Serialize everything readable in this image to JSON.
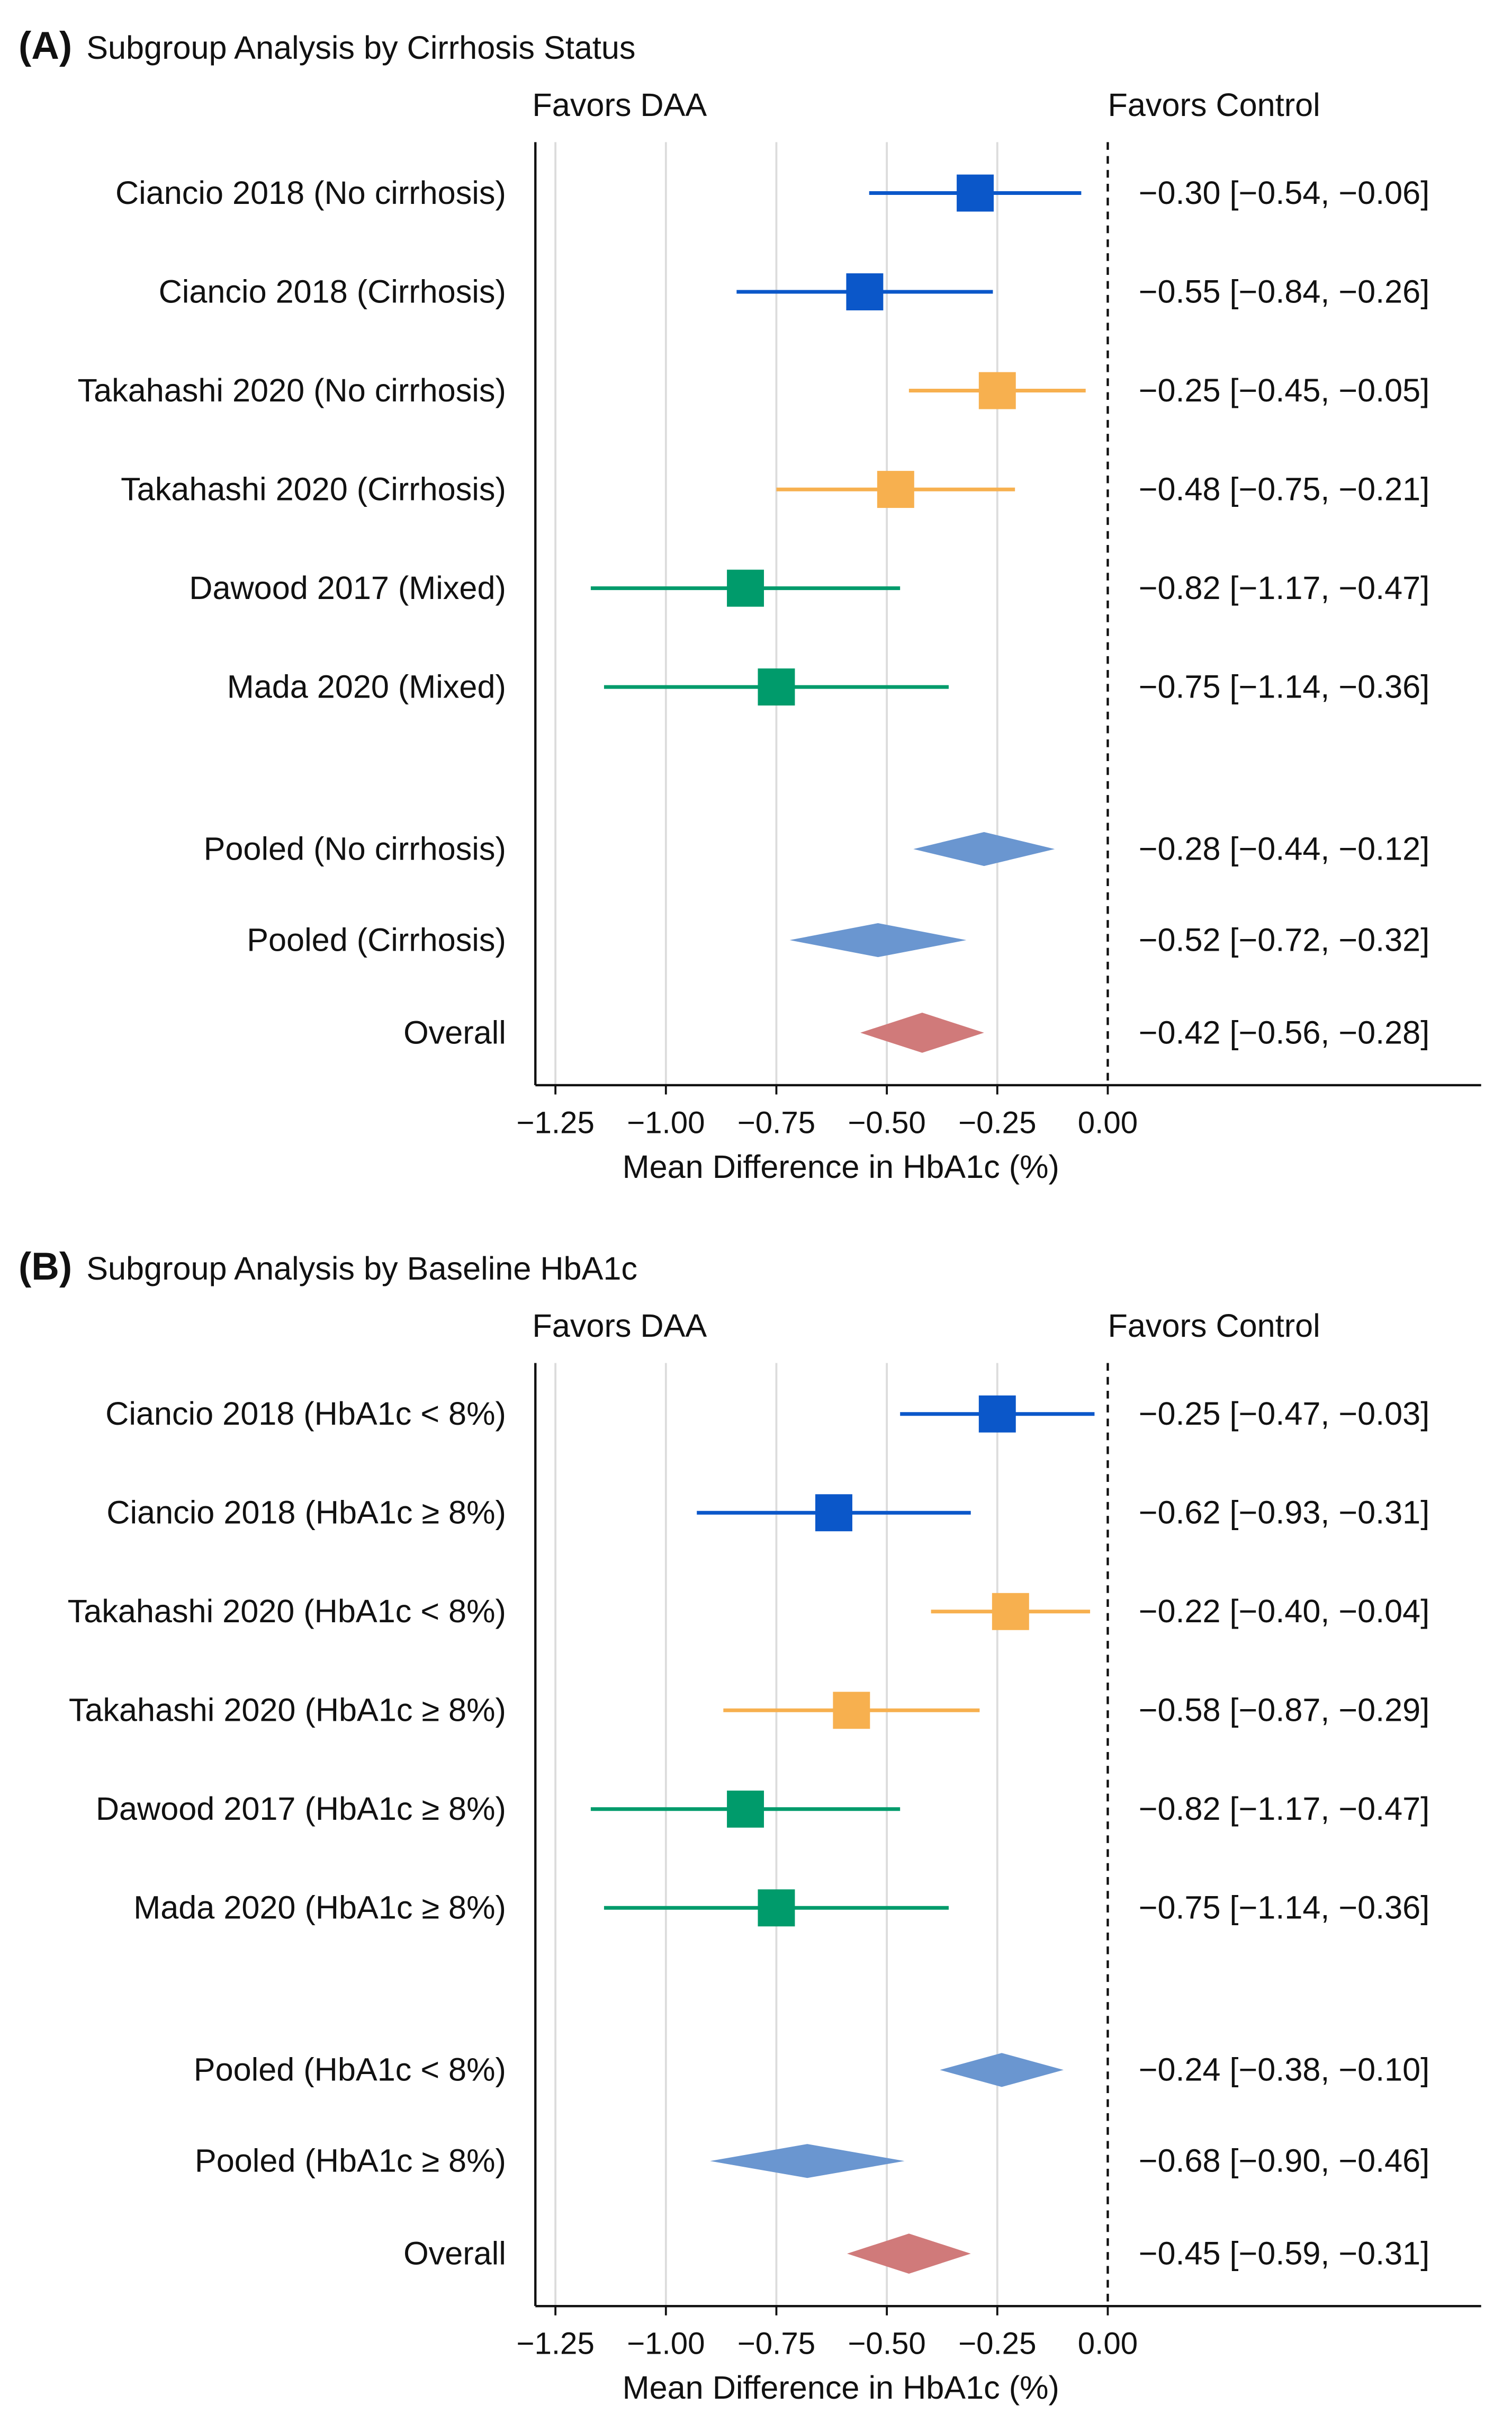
{
  "colors": {
    "ciancio": "#0B57C9",
    "takahashi": "#F7B04F",
    "dawood_mada": "#009B6B",
    "pooled": "#6A96D0",
    "overall": "#D07A7A"
  },
  "chart_data": [
    {
      "type": "forest",
      "panel_tag": "(A)",
      "title": "Subgroup Analysis by Cirrhosis Status",
      "favors_left": "Favors DAA",
      "favors_right": "Favors Control",
      "xlabel": "Mean Difference in HbA1c (%)",
      "xlim": [
        -1.3,
        0.0
      ],
      "xticks": [
        -1.25,
        -1.0,
        -0.75,
        -0.5,
        -0.25,
        0.0
      ],
      "xtick_labels": [
        "−1.25",
        "−1.00",
        "−0.75",
        "−0.50",
        "−0.25",
        "0.00"
      ],
      "reference_line": 0,
      "grid": "vertical",
      "rows": [
        {
          "label": "Ciancio 2018 (No cirrhosis)",
          "kind": "study",
          "color": "ciancio",
          "est": -0.3,
          "lo": -0.54,
          "hi": -0.06,
          "ci_text": "−0.30 [−0.54, −0.06]"
        },
        {
          "label": "Ciancio 2018 (Cirrhosis)",
          "kind": "study",
          "color": "ciancio",
          "est": -0.55,
          "lo": -0.84,
          "hi": -0.26,
          "ci_text": "−0.55 [−0.84, −0.26]"
        },
        {
          "label": "Takahashi 2020 (No cirrhosis)",
          "kind": "study",
          "color": "takahashi",
          "est": -0.25,
          "lo": -0.45,
          "hi": -0.05,
          "ci_text": "−0.25 [−0.45, −0.05]"
        },
        {
          "label": "Takahashi 2020 (Cirrhosis)",
          "kind": "study",
          "color": "takahashi",
          "est": -0.48,
          "lo": -0.75,
          "hi": -0.21,
          "ci_text": "−0.48 [−0.75, −0.21]"
        },
        {
          "label": "Dawood 2017 (Mixed)",
          "kind": "study",
          "color": "dawood_mada",
          "est": -0.82,
          "lo": -1.17,
          "hi": -0.47,
          "ci_text": "−0.82 [−1.17, −0.47]"
        },
        {
          "label": "Mada 2020 (Mixed)",
          "kind": "study",
          "color": "dawood_mada",
          "est": -0.75,
          "lo": -1.14,
          "hi": -0.36,
          "ci_text": "−0.75 [−1.14, −0.36]"
        },
        {
          "label": "Pooled (No cirrhosis)",
          "kind": "pooled",
          "color": "pooled",
          "est": -0.28,
          "lo": -0.44,
          "hi": -0.12,
          "ci_text": "−0.28 [−0.44, −0.12]"
        },
        {
          "label": "Pooled (Cirrhosis)",
          "kind": "pooled",
          "color": "pooled",
          "est": -0.52,
          "lo": -0.72,
          "hi": -0.32,
          "ci_text": "−0.52 [−0.72, −0.32]"
        },
        {
          "label": "Overall",
          "kind": "overall",
          "color": "overall",
          "est": -0.42,
          "lo": -0.56,
          "hi": -0.28,
          "ci_text": "−0.42 [−0.56, −0.28]"
        }
      ]
    },
    {
      "type": "forest",
      "panel_tag": "(B)",
      "title": "Subgroup Analysis by Baseline HbA1c",
      "favors_left": "Favors DAA",
      "favors_right": "Favors Control",
      "xlabel": "Mean Difference in HbA1c (%)",
      "xlim": [
        -1.3,
        0.0
      ],
      "xticks": [
        -1.25,
        -1.0,
        -0.75,
        -0.5,
        -0.25,
        0.0
      ],
      "xtick_labels": [
        "−1.25",
        "−1.00",
        "−0.75",
        "−0.50",
        "−0.25",
        "0.00"
      ],
      "reference_line": 0,
      "grid": "vertical",
      "rows": [
        {
          "label": "Ciancio 2018 (HbA1c < 8%)",
          "kind": "study",
          "color": "ciancio",
          "est": -0.25,
          "lo": -0.47,
          "hi": -0.03,
          "ci_text": "−0.25 [−0.47, −0.03]"
        },
        {
          "label": "Ciancio 2018 (HbA1c ≥ 8%)",
          "kind": "study",
          "color": "ciancio",
          "est": -0.62,
          "lo": -0.93,
          "hi": -0.31,
          "ci_text": "−0.62 [−0.93, −0.31]"
        },
        {
          "label": "Takahashi 2020 (HbA1c < 8%)",
          "kind": "study",
          "color": "takahashi",
          "est": -0.22,
          "lo": -0.4,
          "hi": -0.04,
          "ci_text": "−0.22 [−0.40, −0.04]"
        },
        {
          "label": "Takahashi 2020 (HbA1c ≥ 8%)",
          "kind": "study",
          "color": "takahashi",
          "est": -0.58,
          "lo": -0.87,
          "hi": -0.29,
          "ci_text": "−0.58 [−0.87, −0.29]"
        },
        {
          "label": "Dawood 2017 (HbA1c ≥ 8%)",
          "kind": "study",
          "color": "dawood_mada",
          "est": -0.82,
          "lo": -1.17,
          "hi": -0.47,
          "ci_text": "−0.82 [−1.17, −0.47]"
        },
        {
          "label": "Mada 2020 (HbA1c ≥ 8%)",
          "kind": "study",
          "color": "dawood_mada",
          "est": -0.75,
          "lo": -1.14,
          "hi": -0.36,
          "ci_text": "−0.75 [−1.14, −0.36]"
        },
        {
          "label": "Pooled (HbA1c < 8%)",
          "kind": "pooled",
          "color": "pooled",
          "est": -0.24,
          "lo": -0.38,
          "hi": -0.1,
          "ci_text": "−0.24 [−0.38, −0.10]"
        },
        {
          "label": "Pooled (HbA1c ≥ 8%)",
          "kind": "pooled",
          "color": "pooled",
          "est": -0.68,
          "lo": -0.9,
          "hi": -0.46,
          "ci_text": "−0.68 [−0.90, −0.46]"
        },
        {
          "label": "Overall",
          "kind": "overall",
          "color": "overall",
          "est": -0.45,
          "lo": -0.59,
          "hi": -0.31,
          "ci_text": "−0.45 [−0.59, −0.31]"
        }
      ]
    }
  ]
}
